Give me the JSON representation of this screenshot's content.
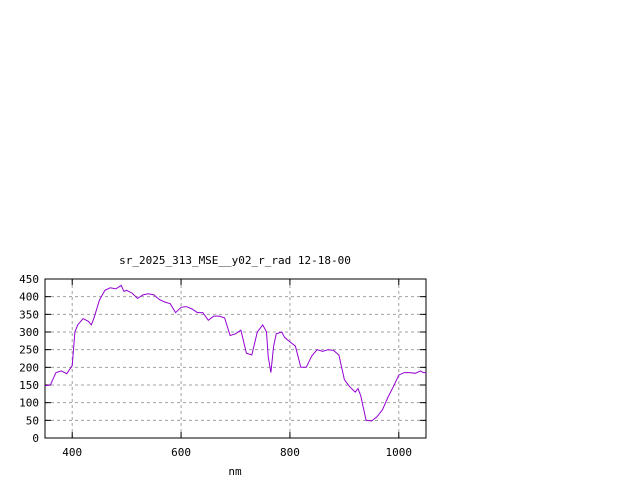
{
  "chart_data": {
    "type": "line",
    "title": "sr_2025_313_MSE__y02_r_rad 12-18-00",
    "xlabel": "nm",
    "ylabel": "",
    "xlim": [
      350,
      1050
    ],
    "ylim": [
      0,
      450
    ],
    "xticks": [
      400,
      600,
      800,
      1000
    ],
    "yticks": [
      0,
      50,
      100,
      150,
      200,
      250,
      300,
      350,
      400,
      450
    ],
    "grid": true,
    "line_color": "#9400d3",
    "series": [
      {
        "x": [
          350,
          360,
          370,
          380,
          390,
          400,
          405,
          410,
          420,
          430,
          435,
          440,
          450,
          460,
          470,
          480,
          490,
          495,
          500,
          510,
          520,
          530,
          540,
          550,
          560,
          570,
          580,
          590,
          600,
          610,
          620,
          630,
          640,
          650,
          660,
          670,
          680,
          690,
          700,
          710,
          720,
          730,
          740,
          750,
          757,
          760,
          765,
          770,
          775,
          785,
          790,
          800,
          810,
          820,
          830,
          840,
          850,
          860,
          870,
          880,
          890,
          900,
          910,
          920,
          925,
          930,
          940,
          950,
          960,
          970,
          980,
          990,
          1000,
          1010,
          1020,
          1030,
          1040,
          1045,
          1050
        ],
        "values": [
          148,
          150,
          185,
          190,
          182,
          205,
          300,
          320,
          338,
          330,
          320,
          340,
          390,
          418,
          425,
          422,
          432,
          415,
          418,
          410,
          395,
          405,
          408,
          405,
          392,
          385,
          380,
          355,
          370,
          372,
          365,
          355,
          355,
          333,
          345,
          345,
          340,
          290,
          295,
          305,
          240,
          235,
          300,
          320,
          300,
          230,
          185,
          260,
          295,
          300,
          285,
          272,
          260,
          200,
          200,
          232,
          250,
          245,
          250,
          248,
          235,
          165,
          145,
          130,
          140,
          120,
          50,
          48,
          60,
          80,
          115,
          145,
          178,
          185,
          185,
          183,
          190,
          185,
          185
        ]
      }
    ]
  }
}
